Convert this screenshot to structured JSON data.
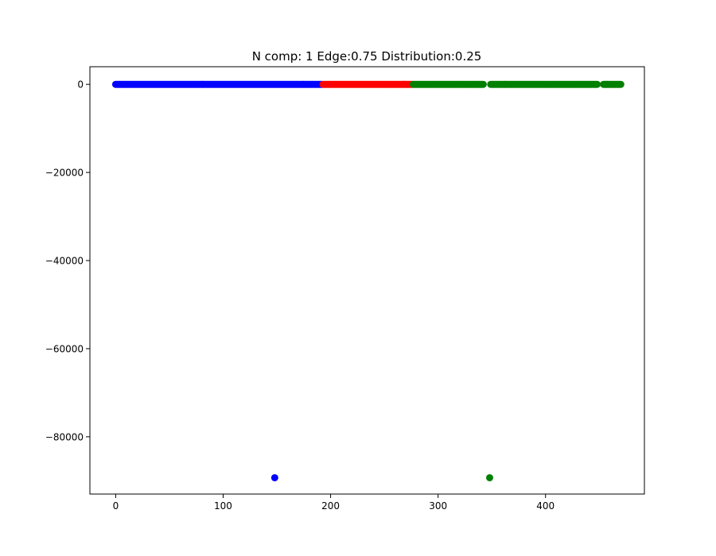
{
  "chart_data": {
    "type": "scatter",
    "title": "N comp: 1 Edge:0.75 Distribution:0.25",
    "xlabel": "",
    "ylabel": "",
    "xlim": [
      -24,
      492
    ],
    "ylim": [
      -93000,
      4000
    ],
    "xticks": [
      0,
      100,
      200,
      300,
      400
    ],
    "yticks": [
      0,
      -20000,
      -40000,
      -60000,
      -80000
    ],
    "xtick_labels": [
      "0",
      "100",
      "200",
      "300",
      "400"
    ],
    "ytick_labels": [
      "0",
      "−20000",
      "−40000",
      "−60000",
      "−80000"
    ],
    "grid": false,
    "legend": "none",
    "series": [
      {
        "color": "#0000ff",
        "x_range": [
          0,
          192
        ],
        "y": 0,
        "gaps": [],
        "outliers": [
          {
            "x": 148,
            "y": -89300
          }
        ]
      },
      {
        "color": "#ff0000",
        "x_range": [
          193,
          276
        ],
        "y": 0,
        "gaps": [],
        "outliers": []
      },
      {
        "color": "#008000",
        "x_range": [
          277,
          470
        ],
        "y": 0,
        "gaps": [
          [
            342,
            349
          ],
          [
            448,
            454
          ]
        ],
        "outliers": [
          {
            "x": 348,
            "y": -89300
          }
        ]
      }
    ]
  }
}
